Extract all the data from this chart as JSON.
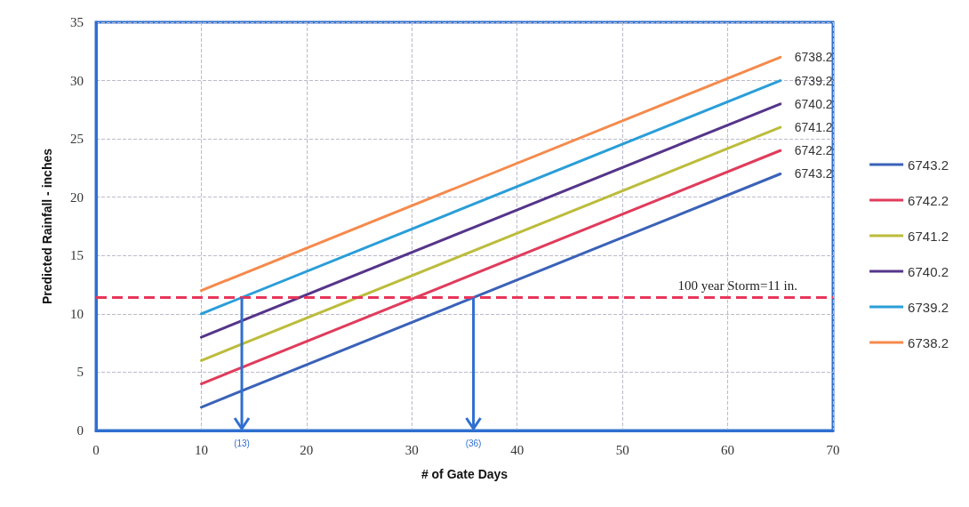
{
  "chart_data": {
    "type": "line",
    "xlabel": "# of Gate Days",
    "ylabel": "Predicted Rainfall - inches",
    "xlim": [
      0,
      70
    ],
    "xticks": [
      0,
      10,
      20,
      30,
      40,
      50,
      60,
      70
    ],
    "ylim": [
      0,
      35
    ],
    "yticks": [
      0,
      5,
      10,
      15,
      20,
      25,
      30,
      35
    ],
    "x": [
      10,
      65
    ],
    "grid": true,
    "legend": "right",
    "marker": "none",
    "line_style": "solid",
    "series": [
      {
        "name": "6743.2",
        "color": "#3a62b8",
        "values": [
          2,
          22
        ]
      },
      {
        "name": "6742.2",
        "color": "#e03c5c",
        "values": [
          4,
          24
        ]
      },
      {
        "name": "6741.2",
        "color": "#bcbc3c",
        "values": [
          6,
          26
        ]
      },
      {
        "name": "6740.2",
        "color": "#55358a",
        "values": [
          8,
          28
        ]
      },
      {
        "name": "6739.2",
        "color": "#2a9ed8",
        "values": [
          10,
          30
        ]
      },
      {
        "name": "6738.2",
        "color": "#f58a4c",
        "values": [
          12,
          32
        ]
      }
    ],
    "ref_lines": [
      {
        "axis": "y",
        "value": 11.4,
        "label": "100 year Storm=11 in.",
        "color": "#e8365a",
        "line_style": "dashed"
      }
    ],
    "annotations": [
      {
        "text": "(13)",
        "x": 13.85,
        "y": 11.4
      },
      {
        "text": "(36)",
        "x": 35.85,
        "y": 11.4
      }
    ]
  }
}
